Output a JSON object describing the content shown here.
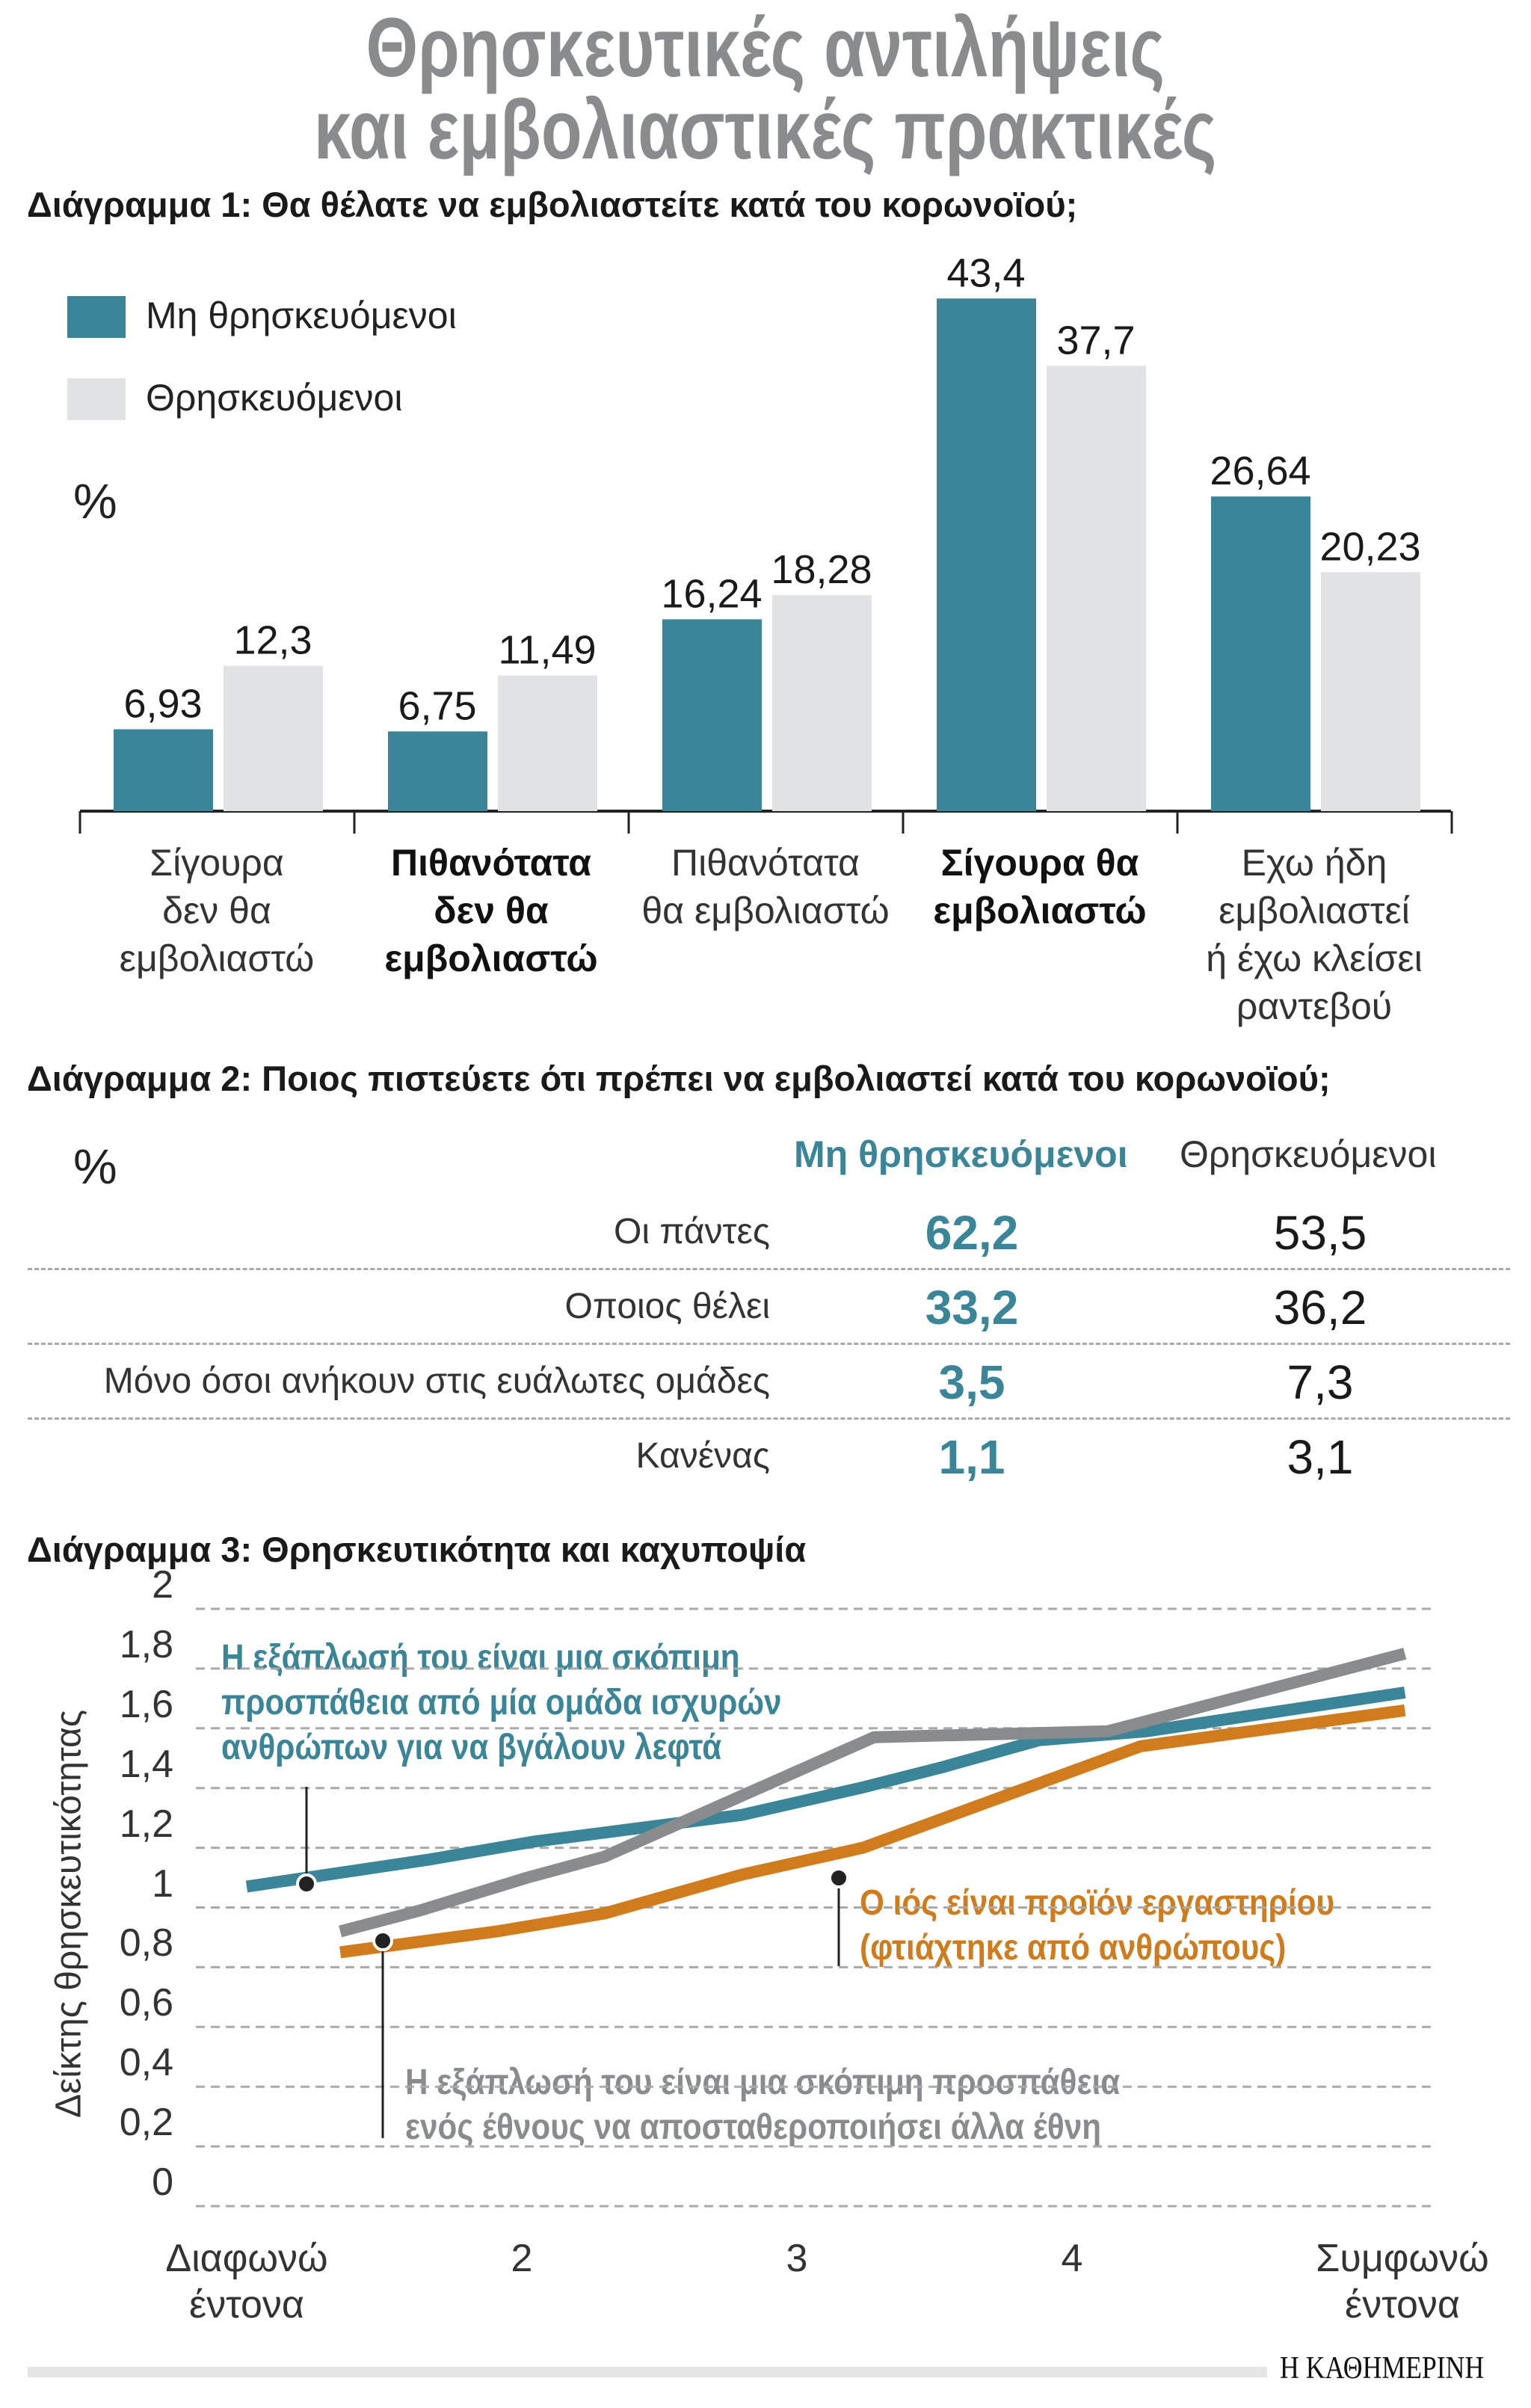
{
  "title": [
    "Θρησκευτικές αντιλήψεις",
    "και εμβολιαστικές πρακτικές"
  ],
  "colors": {
    "teal": "#3b8598",
    "light_gray": "#e1e2e4",
    "orange": "#d07b1c",
    "gray_line": "#8a8b8d",
    "title_gray": "#8a8b8d"
  },
  "chart_data": [
    {
      "type": "bar",
      "title": "Διάγραμμα 1: Θα θέλατε να εμβολιαστείτε κατά του κορωνοϊού;",
      "unit_label": "%",
      "legend": [
        "Μη θρησκευόμενοι",
        "Θρησκευόμενοι"
      ],
      "legend_placement": "top-left",
      "categories": [
        [
          "Σίγουρα",
          "δεν θα",
          "εμβολιαστώ"
        ],
        [
          "Πιθανότατα",
          "δεν θα",
          "εμβολιαστώ"
        ],
        [
          "Πιθανότατα",
          "θα εμβολιαστώ"
        ],
        [
          "Σίγουρα θα",
          "εμβολιαστώ"
        ],
        [
          "Εχω ήδη",
          "εμβολιαστεί",
          "ή έχω κλείσει",
          "ραντεβού"
        ]
      ],
      "bold_categories": [
        false,
        true,
        false,
        true,
        false
      ],
      "series": [
        {
          "name": "Μη θρησκευόμενοι",
          "values": [
            6.93,
            6.75,
            16.24,
            43.4,
            26.64
          ],
          "labels": [
            "6,93",
            "6,75",
            "16,24",
            "43,4",
            "26,64"
          ]
        },
        {
          "name": "Θρησκευόμενοι",
          "values": [
            12.3,
            11.49,
            18.28,
            37.7,
            20.23
          ],
          "labels": [
            "12,3",
            "11,49",
            "18,28",
            "37,7",
            "20,23"
          ]
        }
      ],
      "ylim": [
        0,
        45
      ]
    },
    {
      "type": "table",
      "title": "Διάγραμμα 2: Ποιος πιστεύετε ότι πρέπει να εμβολιαστεί κατά του κορωνοϊού;",
      "unit_label": "%",
      "columns": [
        "Μη θρησκευόμενοι",
        "Θρησκευόμενοι"
      ],
      "rows": [
        {
          "label": "Οι πάντες",
          "values": [
            "62,2",
            "53,5"
          ]
        },
        {
          "label": "Οποιος θέλει",
          "values": [
            "33,2",
            "36,2"
          ]
        },
        {
          "label": "Μόνο όσοι ανήκουν στις ευάλωτες ομάδες",
          "values": [
            "3,5",
            "7,3"
          ]
        },
        {
          "label": "Κανένας",
          "values": [
            "1,1",
            "3,1"
          ]
        }
      ]
    },
    {
      "type": "line",
      "title": "Διάγραμμα 3: Θρησκευτικότητα και καχυποψία",
      "ylabel": "Δείκτης θρησκευτικότητας",
      "ylim": [
        0,
        2
      ],
      "yticks": [
        "0",
        "0,2",
        "0,4",
        "0,6",
        "0,8",
        "1",
        "1,2",
        "1,4",
        "1,6",
        "1,8",
        "2"
      ],
      "xlim": [
        1,
        5
      ],
      "xticks": [
        [
          "Διαφωνώ",
          "έντονα"
        ],
        [
          "2"
        ],
        [
          "3"
        ],
        [
          "4"
        ],
        [
          "Συμφωνώ",
          "έντονα"
        ]
      ],
      "grid": true,
      "series": [
        {
          "name": "Η εξάπλωσή του είναι μια σκόπιμη προσπάθεια από μία ομάδα ισχυρών ανθρώπων για να βγάλουν λεφτά",
          "annotation": [
            "Η εξάπλωσή του είναι μια σκόπιμη",
            "προσπάθεια από μία ομάδα ισχυρών",
            "ανθρώπων για να βγάλουν λεφτά"
          ],
          "color": "#3b8598",
          "points": [
            [
              1.0,
              1.07
            ],
            [
              1.66,
              1.16
            ],
            [
              2.04,
              1.22
            ],
            [
              2.8,
              1.31
            ],
            [
              3.23,
              1.4
            ],
            [
              3.53,
              1.47
            ],
            [
              3.88,
              1.56
            ],
            [
              4.27,
              1.59
            ],
            [
              5.21,
              1.72
            ]
          ]
        },
        {
          "name": "Ο ιός είναι προϊόν εργαστηρίου (φτιάχτηκε από ανθρώπους)",
          "annotation": [
            "Ο ιός είναι προϊόν εργαστηρίου",
            "(φτιάχτηκε από ανθρώπους)"
          ],
          "color": "#d07b1c",
          "points": [
            [
              1.34,
              0.85
            ],
            [
              1.91,
              0.92
            ],
            [
              2.3,
              0.98
            ],
            [
              2.8,
              1.11
            ],
            [
              3.24,
              1.2
            ],
            [
              4.25,
              1.54
            ],
            [
              5.21,
              1.66
            ]
          ]
        },
        {
          "name": "Η εξάπλωσή του είναι μια σκόπιμη προσπάθεια ενός έθνους να αποσταθεροποιήσει άλλα έθνη",
          "annotation": [
            "Η εξάπλωσή του είναι μια σκόπιμη προσπάθεια",
            "ενός έθνους να αποσταθεροποιήσει άλλα έθνη"
          ],
          "color": "#8a8b8d",
          "points": [
            [
              1.34,
              0.92
            ],
            [
              1.63,
              0.99
            ],
            [
              2.02,
              1.1
            ],
            [
              2.3,
              1.17
            ],
            [
              3.28,
              1.57
            ],
            [
              4.13,
              1.59
            ],
            [
              5.21,
              1.85
            ]
          ]
        }
      ]
    }
  ],
  "footer": {
    "source_logo": "Η ΚΑΘΗΜΕΡΙΝΗ"
  }
}
